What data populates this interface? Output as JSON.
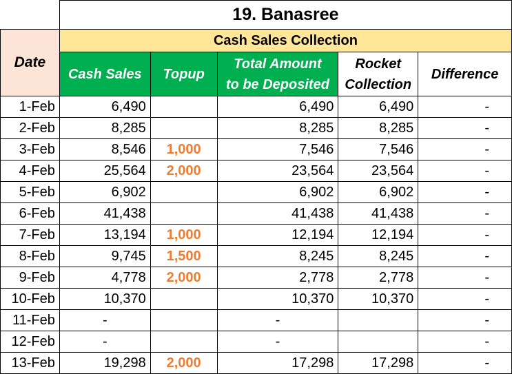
{
  "title": "19. Banasree",
  "group_header": "Cash Sales Collection",
  "columns": {
    "date": "Date",
    "cash_sales": "Cash Sales",
    "topup": "Topup",
    "total_deposit_line1": "Total Amount",
    "total_deposit_line2": "to be Deposited",
    "rocket_line1": "Rocket",
    "rocket_line2": "Collection",
    "difference": "Difference"
  },
  "colors": {
    "green_header": "#00b050",
    "gold_header": "#ffe699",
    "date_header": "#fce4d6",
    "topup_text": "#ed7d31"
  },
  "rows": [
    {
      "date": "1-Feb",
      "cash_sales": "6,490",
      "topup": "",
      "total": "6,490",
      "rocket": "6,490",
      "difference": "-"
    },
    {
      "date": "2-Feb",
      "cash_sales": "8,285",
      "topup": "",
      "total": "8,285",
      "rocket": "8,285",
      "difference": "-"
    },
    {
      "date": "3-Feb",
      "cash_sales": "8,546",
      "topup": "1,000",
      "total": "7,546",
      "rocket": "7,546",
      "difference": "-"
    },
    {
      "date": "4-Feb",
      "cash_sales": "25,564",
      "topup": "2,000",
      "total": "23,564",
      "rocket": "23,564",
      "difference": "-"
    },
    {
      "date": "5-Feb",
      "cash_sales": "6,902",
      "topup": "",
      "total": "6,902",
      "rocket": "6,902",
      "difference": "-"
    },
    {
      "date": "6-Feb",
      "cash_sales": "41,438",
      "topup": "",
      "total": "41,438",
      "rocket": "41,438",
      "difference": "-"
    },
    {
      "date": "7-Feb",
      "cash_sales": "13,194",
      "topup": "1,000",
      "total": "12,194",
      "rocket": "12,194",
      "difference": "-"
    },
    {
      "date": "8-Feb",
      "cash_sales": "9,745",
      "topup": "1,500",
      "total": "8,245",
      "rocket": "8,245",
      "difference": "-"
    },
    {
      "date": "9-Feb",
      "cash_sales": "4,778",
      "topup": "2,000",
      "total": "2,778",
      "rocket": "2,778",
      "difference": "-"
    },
    {
      "date": "10-Feb",
      "cash_sales": "10,370",
      "topup": "",
      "total": "10,370",
      "rocket": "10,370",
      "difference": "-"
    },
    {
      "date": "11-Feb",
      "cash_sales": "-",
      "topup": "",
      "total": "-",
      "rocket": "",
      "difference": "-"
    },
    {
      "date": "12-Feb",
      "cash_sales": "-",
      "topup": "",
      "total": "-",
      "rocket": "",
      "difference": "-"
    },
    {
      "date": "13-Feb",
      "cash_sales": "19,298",
      "topup": "2,000",
      "total": "17,298",
      "rocket": "17,298",
      "difference": "-"
    }
  ]
}
